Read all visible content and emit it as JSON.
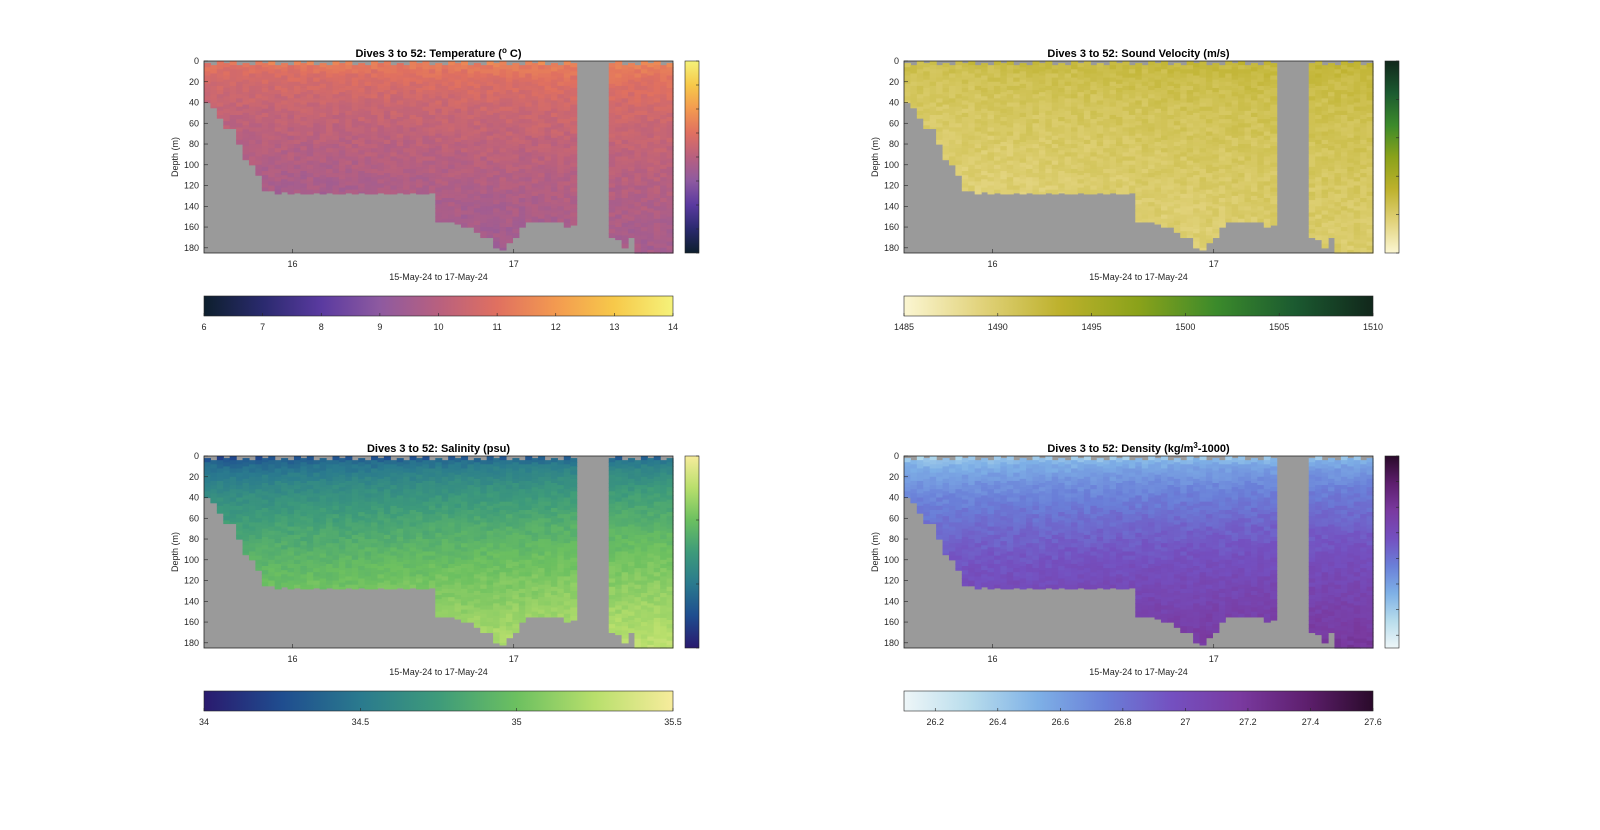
{
  "chart_data": [
    {
      "type": "heatmap",
      "title": "Dives 3 to 52: Temperature (°C)",
      "title_parts": [
        "Dives 3 to 52: Temperature (",
        "o",
        " C)"
      ],
      "xlabel": "15-May-24 to 17-May-24",
      "ylabel": "Depth (m)",
      "x_ticks": [
        "16",
        "17"
      ],
      "y_ticks": [
        "0",
        "20",
        "40",
        "60",
        "80",
        "100",
        "120",
        "140",
        "160",
        "180"
      ],
      "ylim": [
        0,
        185
      ],
      "colorbar": {
        "min": 6,
        "max": 14,
        "ticks": [
          "6",
          "7",
          "8",
          "9",
          "10",
          "11",
          "12",
          "13",
          "14"
        ],
        "colors": [
          "#0d1f2d",
          "#2a2a6e",
          "#5a3aa0",
          "#8e5aa0",
          "#b8607f",
          "#e07060",
          "#f39a50",
          "#f7c94a",
          "#f5f27a"
        ]
      },
      "surface_value": 11.5,
      "bottom_value": 9.4
    },
    {
      "type": "heatmap",
      "title": "Dives 3 to 52: Sound Velocity (m/s)",
      "xlabel": "15-May-24 to 17-May-24",
      "ylabel": "Depth (m)",
      "x_ticks": [
        "16",
        "17"
      ],
      "y_ticks": [
        "0",
        "20",
        "40",
        "60",
        "80",
        "100",
        "120",
        "140",
        "160",
        "180"
      ],
      "ylim": [
        0,
        185
      ],
      "colorbar": {
        "min": 1485,
        "max": 1510,
        "ticks": [
          "1485",
          "1490",
          "1495",
          "1500",
          "1505",
          "1510"
        ],
        "colors": [
          "#fbf6d2",
          "#e1d27a",
          "#bdb12c",
          "#8aa21a",
          "#3b8a2b",
          "#1b5a30",
          "#11271b"
        ]
      },
      "surface_value": 1492.5,
      "bottom_value": 1489.4
    },
    {
      "type": "heatmap",
      "title": "Dives 3 to 52: Salinity (psu)",
      "xlabel": "15-May-24 to 17-May-24",
      "ylabel": "Depth (m)",
      "x_ticks": [
        "16",
        "17"
      ],
      "y_ticks": [
        "0",
        "20",
        "40",
        "60",
        "80",
        "100",
        "120",
        "140",
        "160",
        "180"
      ],
      "ylim": [
        0,
        185
      ],
      "colorbar": {
        "min": 34,
        "max": 35.5,
        "ticks": [
          "34",
          "34.5",
          "35",
          "35.5"
        ],
        "colors": [
          "#2a1a6e",
          "#1f4d8f",
          "#2a7a8e",
          "#3e9b7a",
          "#6cc060",
          "#b8df6c",
          "#f7ec9c"
        ]
      },
      "surface_value": 34.3,
      "bottom_value": 35.2
    },
    {
      "type": "heatmap",
      "title": "Dives 3 to 52: Density (kg/m³-1000)",
      "title_parts": [
        "Dives 3 to 52: Density (kg/m",
        "3",
        "-1000)"
      ],
      "xlabel": "15-May-24 to 17-May-24",
      "ylabel": "Depth (m)",
      "x_ticks": [
        "16",
        "17"
      ],
      "y_ticks": [
        "0",
        "20",
        "40",
        "60",
        "80",
        "100",
        "120",
        "140",
        "160",
        "180"
      ],
      "ylim": [
        0,
        185
      ],
      "colorbar": {
        "min": 26.1,
        "max": 27.6,
        "ticks": [
          "26.2",
          "26.4",
          "26.6",
          "26.8",
          "27",
          "27.2",
          "27.4",
          "27.6"
        ],
        "colors": [
          "#eef6f8",
          "#b7dcec",
          "#7eb0e6",
          "#6a7fd8",
          "#7450c0",
          "#7a3aa0",
          "#5e1f6e",
          "#2a0a2a"
        ]
      },
      "surface_value": 26.4,
      "bottom_value": 27.15
    }
  ],
  "x_range": [
    15.6,
    17.72
  ],
  "x_tick_values": [
    16,
    17
  ],
  "seafloor_depth_m": [
    40,
    45,
    55,
    65,
    65,
    80,
    95,
    100,
    110,
    125,
    125,
    128,
    126,
    128,
    127,
    128,
    128,
    127,
    128,
    127,
    128,
    128,
    127,
    128,
    127,
    128,
    128,
    127,
    128,
    128,
    127,
    128,
    127,
    128,
    128,
    127,
    155,
    155,
    155,
    157,
    160,
    160,
    165,
    170,
    170,
    180,
    182,
    175,
    170,
    160,
    155,
    155,
    155,
    155,
    155,
    155,
    160,
    158,
    0,
    0,
    0,
    0,
    0,
    170,
    172,
    180,
    170,
    185,
    185,
    185,
    185,
    185,
    185
  ],
  "gap_columns": [
    58,
    59,
    60,
    61,
    62
  ]
}
